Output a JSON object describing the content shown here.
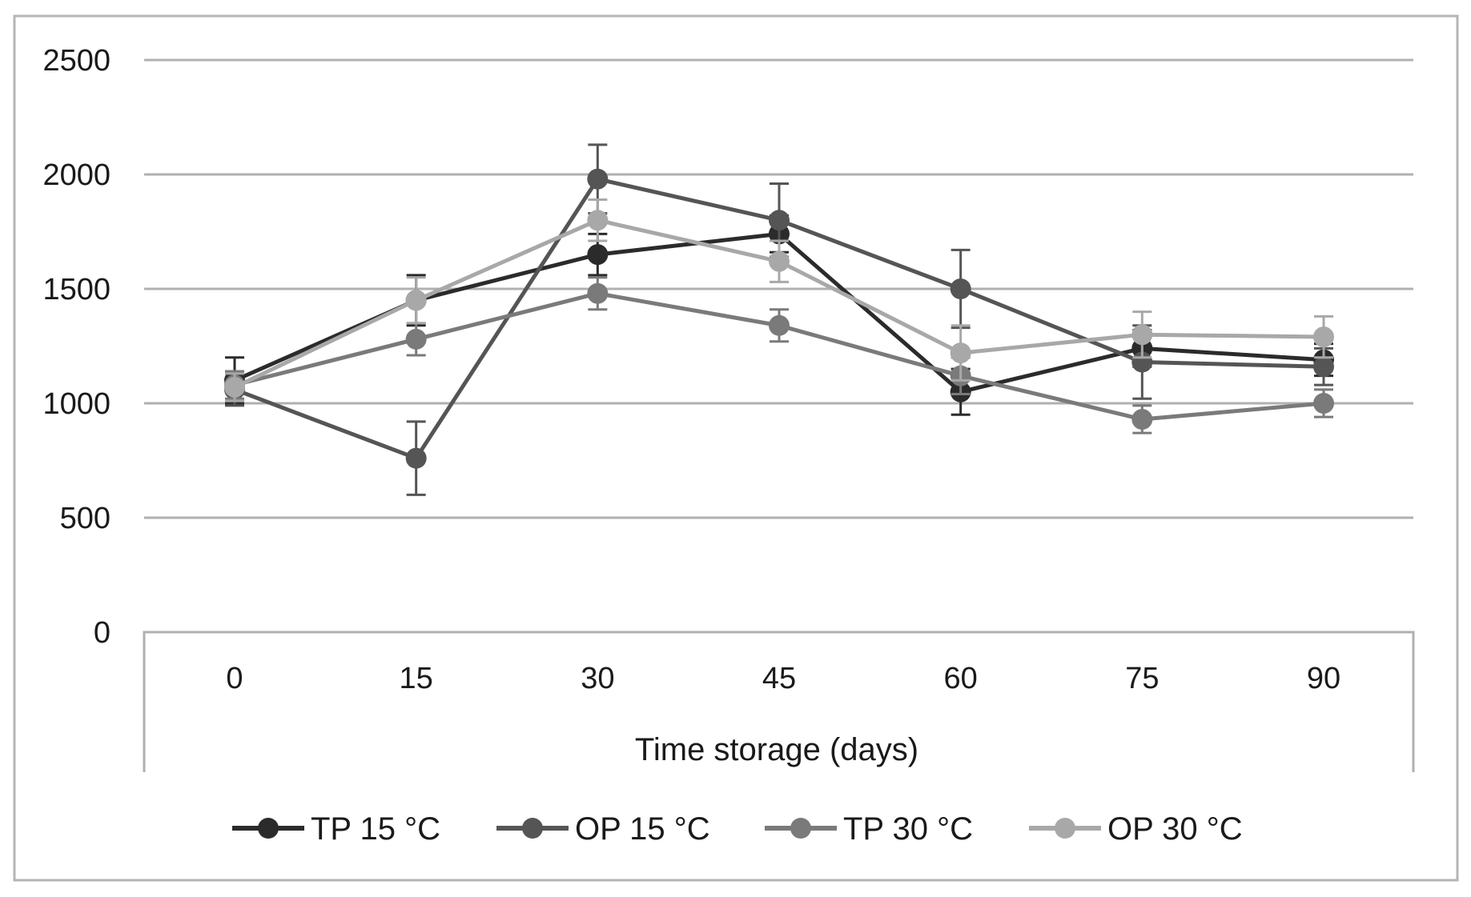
{
  "chart_data": {
    "type": "line",
    "title": "",
    "xlabel": "Time storage (days)",
    "ylabel": "",
    "x": [
      0,
      15,
      30,
      45,
      60,
      75,
      90
    ],
    "x_tick_labels": [
      "0",
      "15",
      "30",
      "45",
      "60",
      "75",
      "90"
    ],
    "ylim": [
      0,
      2500
    ],
    "y_ticks": [
      0,
      500,
      1000,
      1500,
      2000,
      2500
    ],
    "y_tick_labels": [
      "0",
      "500",
      "1000",
      "1500",
      "2000",
      "2500"
    ],
    "grid": true,
    "legend_position": "bottom",
    "series": [
      {
        "name": "TP 15 °C",
        "color": "#2b2b2b",
        "values": [
          1100,
          1450,
          1650,
          1740,
          1050,
          1240,
          1190
        ],
        "errors": [
          100,
          110,
          90,
          80,
          100,
          80,
          70
        ]
      },
      {
        "name": "OP 15 °C",
        "color": "#555555",
        "values": [
          1060,
          760,
          1980,
          1800,
          1500,
          1180,
          1160
        ],
        "errors": [
          70,
          160,
          150,
          160,
          170,
          160,
          80
        ]
      },
      {
        "name": "TP 30 °C",
        "color": "#7a7a7a",
        "values": [
          1080,
          1280,
          1480,
          1340,
          1120,
          930,
          1000
        ],
        "errors": [
          60,
          70,
          70,
          70,
          80,
          60,
          60
        ]
      },
      {
        "name": "OP 30 °C",
        "color": "#a8a8a8",
        "values": [
          1070,
          1450,
          1800,
          1620,
          1220,
          1300,
          1290
        ],
        "errors": [
          60,
          100,
          90,
          90,
          120,
          100,
          90
        ]
      }
    ]
  }
}
